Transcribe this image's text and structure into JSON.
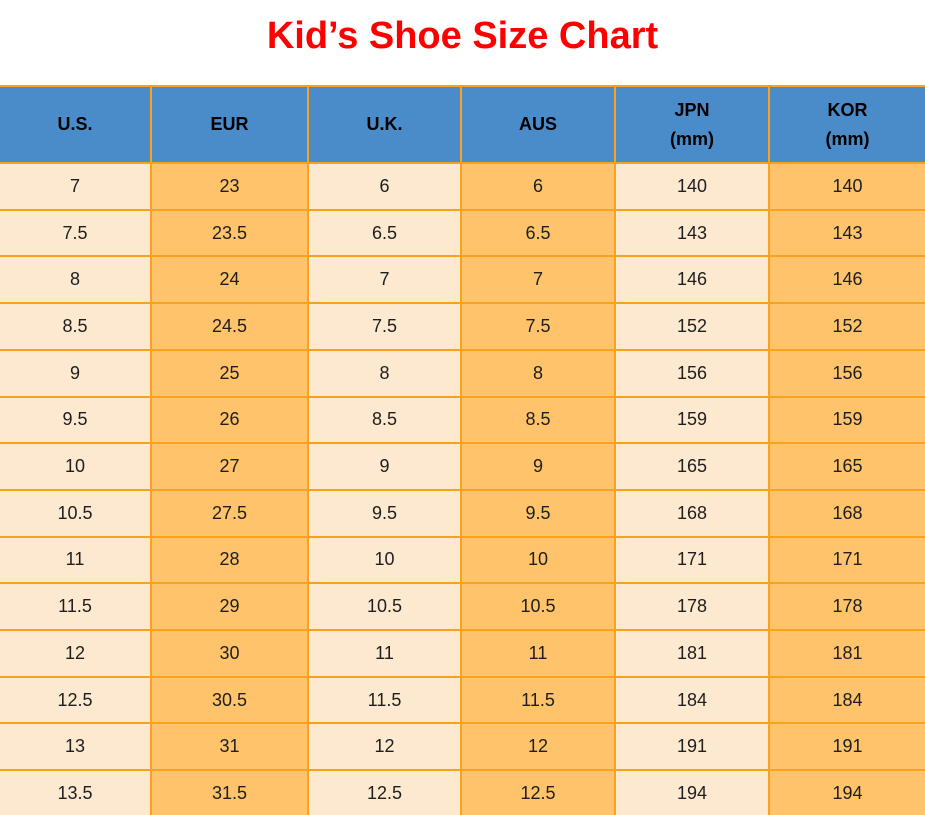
{
  "page": {
    "title": "Kid’s Shoe Size Chart"
  },
  "colors": {
    "title_text": "#FF0000",
    "header_bg": "#4A8BC9",
    "header_text": "#000000",
    "border": "#FAA21B",
    "column_light": "#FCE9CF",
    "column_orange": "#FEC36B",
    "cell_text": "#1E1E1E"
  },
  "table": {
    "headers": [
      "U.S.",
      "EUR",
      "U.K.",
      "AUS",
      "JPN\n(mm)",
      "KOR\n(mm)"
    ],
    "column_keys": [
      "us",
      "eur",
      "uk",
      "aus",
      "jpn",
      "kor"
    ],
    "rows": [
      [
        "7",
        "23",
        "6",
        "6",
        "140",
        "140"
      ],
      [
        "7.5",
        "23.5",
        "6.5",
        "6.5",
        "143",
        "143"
      ],
      [
        "8",
        "24",
        "7",
        "7",
        "146",
        "146"
      ],
      [
        "8.5",
        "24.5",
        "7.5",
        "7.5",
        "152",
        "152"
      ],
      [
        "9",
        "25",
        "8",
        "8",
        "156",
        "156"
      ],
      [
        "9.5",
        "26",
        "8.5",
        "8.5",
        "159",
        "159"
      ],
      [
        "10",
        "27",
        "9",
        "9",
        "165",
        "165"
      ],
      [
        "10.5",
        "27.5",
        "9.5",
        "9.5",
        "168",
        "168"
      ],
      [
        "11",
        "28",
        "10",
        "10",
        "171",
        "171"
      ],
      [
        "11.5",
        "29",
        "10.5",
        "10.5",
        "178",
        "178"
      ],
      [
        "12",
        "30",
        "11",
        "11",
        "181",
        "181"
      ],
      [
        "12.5",
        "30.5",
        "11.5",
        "11.5",
        "184",
        "184"
      ],
      [
        "13",
        "31",
        "12",
        "12",
        "191",
        "191"
      ],
      [
        "13.5",
        "31.5",
        "12.5",
        "12.5",
        "194",
        "194"
      ]
    ]
  },
  "chart_data": {
    "type": "table",
    "title": "Kid’s Shoe Size Chart",
    "columns": [
      "U.S.",
      "EUR",
      "U.K.",
      "AUS",
      "JPN (mm)",
      "KOR (mm)"
    ],
    "rows": [
      [
        "7",
        "23",
        "6",
        "6",
        "140",
        "140"
      ],
      [
        "7.5",
        "23.5",
        "6.5",
        "6.5",
        "143",
        "143"
      ],
      [
        "8",
        "24",
        "7",
        "7",
        "146",
        "146"
      ],
      [
        "8.5",
        "24.5",
        "7.5",
        "7.5",
        "152",
        "152"
      ],
      [
        "9",
        "25",
        "8",
        "8",
        "156",
        "156"
      ],
      [
        "9.5",
        "26",
        "8.5",
        "8.5",
        "159",
        "159"
      ],
      [
        "10",
        "27",
        "9",
        "9",
        "165",
        "165"
      ],
      [
        "10.5",
        "27.5",
        "9.5",
        "9.5",
        "168",
        "168"
      ],
      [
        "11",
        "28",
        "10",
        "10",
        "171",
        "171"
      ],
      [
        "11.5",
        "29",
        "10.5",
        "10.5",
        "178",
        "178"
      ],
      [
        "12",
        "30",
        "11",
        "11",
        "181",
        "181"
      ],
      [
        "12.5",
        "30.5",
        "11.5",
        "11.5",
        "184",
        "184"
      ],
      [
        "13",
        "31",
        "12",
        "12",
        "191",
        "191"
      ],
      [
        "13.5",
        "31.5",
        "12.5",
        "12.5",
        "194",
        "194"
      ]
    ]
  }
}
